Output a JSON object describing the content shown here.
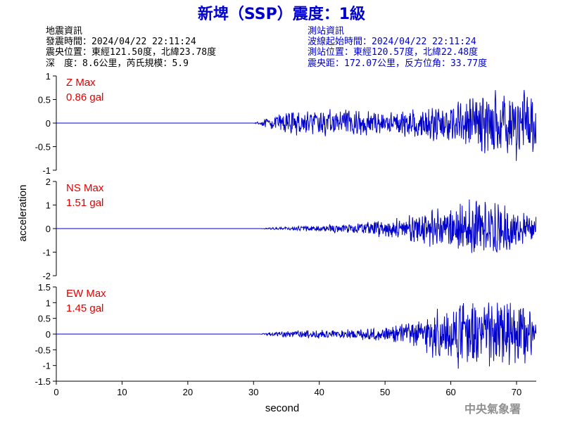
{
  "header": {
    "title": "新埤（SSP）震度：1級",
    "left_lines": [
      "地震資訊",
      "發震時間：2024/04/22 22:11:24",
      "震央位置：東經121.50度，北緯23.78度",
      "深　度：8.6公里，芮氏規模：5.9"
    ],
    "right_lines": [
      "測站資訊",
      "波線起始時間：2024/04/22 22:11:24",
      "測站位置：東經120.57度，北緯22.48度",
      "震央距：172.07公里，反方位角：33.77度"
    ]
  },
  "footer": {
    "agency": "中央氣象署"
  },
  "colors": {
    "trace": "#0000cc",
    "max_label": "#e00000",
    "title": "#0000cc"
  },
  "chart_data": {
    "type": "line",
    "xlabel": "second",
    "ylabel": "acceleration",
    "xlim": [
      0,
      73
    ],
    "xticks": [
      "0",
      "10",
      "20",
      "30",
      "40",
      "50",
      "60",
      "70"
    ],
    "xtick_values": [
      0,
      10,
      20,
      30,
      40,
      50,
      60,
      70
    ],
    "panels": [
      {
        "name": "Z Max",
        "max_value": "0.86 gal",
        "ylim": [
          -1,
          1
        ],
        "yticks": [
          "1",
          "0.5",
          "0",
          "-0.5",
          "-1"
        ],
        "ytick_values": [
          1,
          0.5,
          0,
          -0.5,
          -1
        ],
        "onset": 30,
        "envelope": [
          [
            0,
            0
          ],
          [
            30,
            0
          ],
          [
            31,
            0.05
          ],
          [
            33,
            0.15
          ],
          [
            35,
            0.25
          ],
          [
            40,
            0.28
          ],
          [
            45,
            0.28
          ],
          [
            50,
            0.25
          ],
          [
            55,
            0.3
          ],
          [
            60,
            0.45
          ],
          [
            65,
            0.6
          ],
          [
            70,
            0.8
          ],
          [
            73,
            0.7
          ]
        ]
      },
      {
        "name": "NS Max",
        "max_value": "1.51 gal",
        "ylim": [
          -2,
          2
        ],
        "yticks": [
          "2",
          "1",
          "0",
          "-1",
          "-2"
        ],
        "ytick_values": [
          2,
          1,
          0,
          -1,
          -2
        ],
        "onset": 31,
        "envelope": [
          [
            0,
            0
          ],
          [
            31,
            0
          ],
          [
            33,
            0.05
          ],
          [
            40,
            0.15
          ],
          [
            45,
            0.2
          ],
          [
            50,
            0.35
          ],
          [
            55,
            0.6
          ],
          [
            58,
            0.9
          ],
          [
            62,
            1.2
          ],
          [
            65,
            1.3
          ],
          [
            68,
            1.1
          ],
          [
            70,
            0.8
          ],
          [
            73,
            0.5
          ]
        ]
      },
      {
        "name": "EW Max",
        "max_value": "1.45 gal",
        "ylim": [
          -1.5,
          1.5
        ],
        "yticks": [
          "1.5",
          "1",
          "0.5",
          "0",
          "-0.5",
          "-1",
          "-1.5"
        ],
        "ytick_values": [
          1.5,
          1,
          0.5,
          0,
          -0.5,
          -1,
          -1.5
        ],
        "onset": 31,
        "envelope": [
          [
            0,
            0
          ],
          [
            31,
            0
          ],
          [
            33,
            0.08
          ],
          [
            40,
            0.15
          ],
          [
            45,
            0.15
          ],
          [
            50,
            0.25
          ],
          [
            55,
            0.45
          ],
          [
            58,
            0.8
          ],
          [
            62,
            1.1
          ],
          [
            66,
            1.0
          ],
          [
            70,
            1.1
          ],
          [
            72,
            0.8
          ],
          [
            73,
            0.5
          ]
        ]
      }
    ]
  }
}
